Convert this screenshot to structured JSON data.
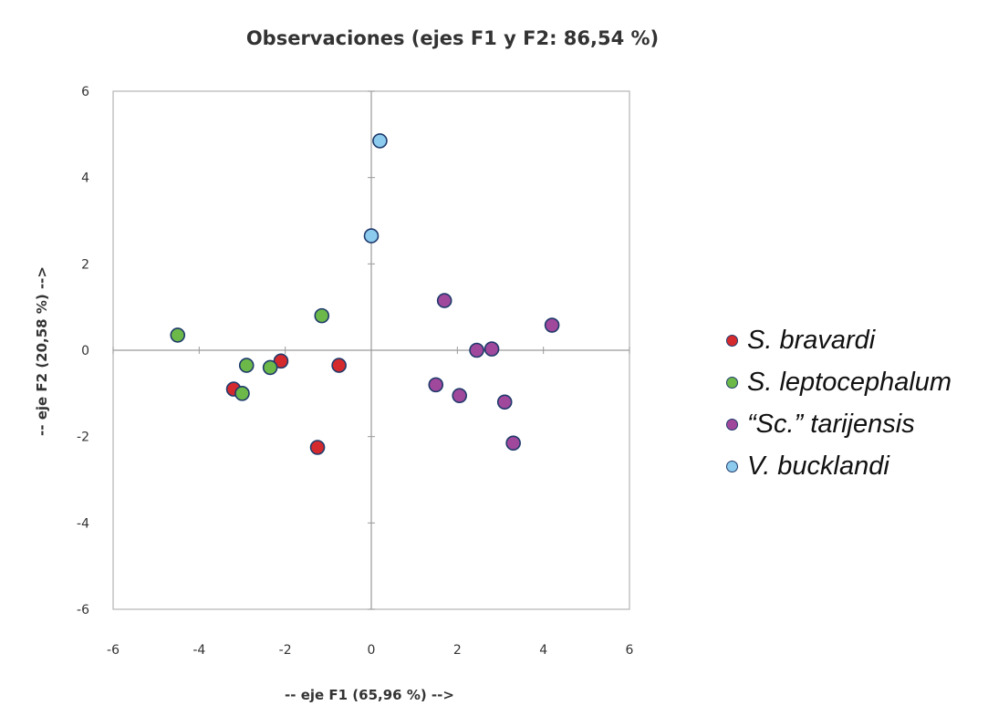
{
  "chart_data": {
    "type": "scatter",
    "title": "Observaciones (ejes F1 y F2: 86,54 %)",
    "xlabel": "-- eje F1 (65,96 %) -->",
    "ylabel": "-- eje F2 (20,58 %) -->",
    "xlim": [
      -6,
      6
    ],
    "ylim": [
      -6,
      6
    ],
    "xticks": [
      "-6",
      "-4",
      "-2",
      "0",
      "2",
      "4",
      "6"
    ],
    "yticks": [
      "6",
      "4",
      "2",
      "0",
      "-2",
      "-4",
      "-6"
    ],
    "grid": false,
    "legend_position": "right",
    "series": [
      {
        "name": "S. bravardi",
        "color": "#d42a2e",
        "points": [
          {
            "x": -2.1,
            "y": -0.25
          },
          {
            "x": -3.2,
            "y": -0.9
          },
          {
            "x": -0.75,
            "y": -0.35
          },
          {
            "x": -1.25,
            "y": -2.25
          }
        ]
      },
      {
        "name": "S. leptocephalum",
        "color": "#6cb94a",
        "points": [
          {
            "x": -4.5,
            "y": 0.35
          },
          {
            "x": -2.9,
            "y": -0.35
          },
          {
            "x": -3.0,
            "y": -1.0
          },
          {
            "x": -2.35,
            "y": -0.4
          },
          {
            "x": -1.15,
            "y": 0.8
          }
        ]
      },
      {
        "name": "“Sc.” tarijensis",
        "color": "#a0489c",
        "points": [
          {
            "x": 1.7,
            "y": 1.15
          },
          {
            "x": 4.2,
            "y": 0.58
          },
          {
            "x": 2.45,
            "y": 0.0
          },
          {
            "x": 2.8,
            "y": 0.03
          },
          {
            "x": 1.5,
            "y": -0.8
          },
          {
            "x": 2.05,
            "y": -1.05
          },
          {
            "x": 3.1,
            "y": -1.2
          },
          {
            "x": 3.3,
            "y": -2.15
          }
        ]
      },
      {
        "name": "V. bucklandi",
        "color": "#8ccbee",
        "points": [
          {
            "x": 0.2,
            "y": 4.85
          },
          {
            "x": 0.0,
            "y": 2.65
          }
        ]
      }
    ]
  }
}
